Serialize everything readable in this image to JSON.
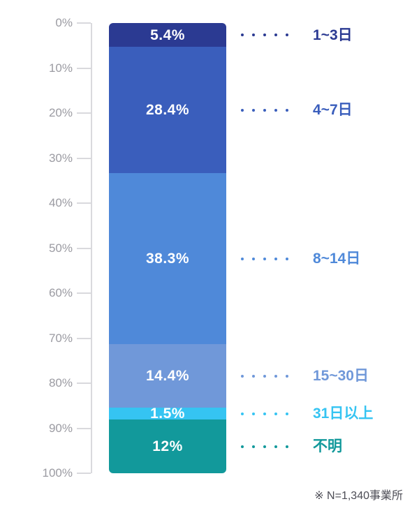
{
  "chart_data": {
    "type": "bar",
    "subtype": "vertical-stacked-single-column",
    "title": "",
    "xlabel": "",
    "ylabel": "",
    "grid": false,
    "legend_position": "right",
    "y_axis": {
      "min": 0,
      "max": 100,
      "unit": "%",
      "direction": "top-to-bottom",
      "ticks": [
        "0%",
        "10%",
        "20%",
        "30%",
        "40%",
        "50%",
        "60%",
        "70%",
        "80%",
        "90%",
        "100%"
      ]
    },
    "segments": [
      {
        "label": "1~3日",
        "value": 5.4,
        "display": "5.4%",
        "color": "#2b3a92"
      },
      {
        "label": "4~7日",
        "value": 28.4,
        "display": "28.4%",
        "color": "#3a5ebc"
      },
      {
        "label": "8~14日",
        "value": 38.3,
        "display": "38.3%",
        "color": "#4f89d9"
      },
      {
        "label": "15~30日",
        "value": 14.4,
        "display": "14.4%",
        "color": "#7098d9"
      },
      {
        "label": "31日以上",
        "value": 1.5,
        "display": "1.5%",
        "color": "#35c4f2"
      },
      {
        "label": "不明",
        "value": 12,
        "display": "12%",
        "color": "#12999b"
      }
    ]
  },
  "footnote": "※ N=1,340事業所",
  "colors": {
    "background": "#ffffff",
    "axis": "#d9d9dd",
    "tick_label": "#9b9ba2",
    "value_label": "#ffffff",
    "footnote": "#4c4c55"
  }
}
